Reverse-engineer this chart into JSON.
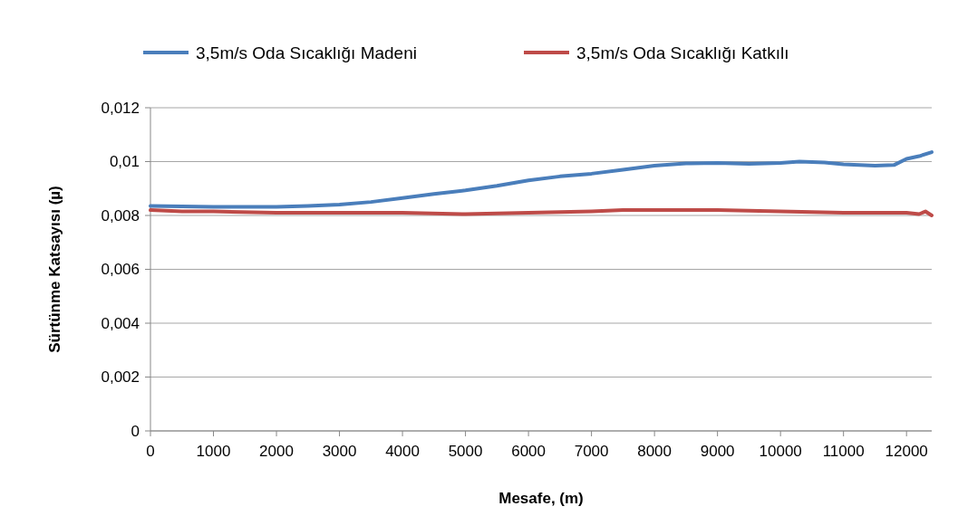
{
  "chart_data": {
    "type": "line",
    "xlabel": "Mesafe, (m)",
    "ylabel": "Sürtünme Katsayısı (µ)",
    "xlim": [
      0,
      12400
    ],
    "xticks": [
      0,
      1000,
      2000,
      3000,
      4000,
      5000,
      6000,
      7000,
      8000,
      9000,
      10000,
      11000,
      12000
    ],
    "ylim": [
      0,
      0.012
    ],
    "yticks": [
      {
        "value": 0,
        "label": "0"
      },
      {
        "value": 0.002,
        "label": "0,002"
      },
      {
        "value": 0.004,
        "label": "0,004"
      },
      {
        "value": 0.006,
        "label": "0,006"
      },
      {
        "value": 0.008,
        "label": "0,008"
      },
      {
        "value": 0.01,
        "label": "0,01"
      },
      {
        "value": 0.012,
        "label": "0,012"
      }
    ],
    "grid": "y",
    "legend": "top",
    "line_style": "solid",
    "marker": "none",
    "series": [
      {
        "name": "3,5m/s Oda Sıcaklığı Madeni",
        "color": "#4a7ebb",
        "x": [
          0,
          1000,
          2000,
          2500,
          3000,
          3500,
          4000,
          4500,
          5000,
          5500,
          6000,
          6500,
          7000,
          7500,
          8000,
          8500,
          9000,
          9500,
          10000,
          10300,
          10700,
          11000,
          11500,
          11800,
          12000,
          12200,
          12400
        ],
        "values": [
          0.00835,
          0.00832,
          0.00832,
          0.00835,
          0.0084,
          0.0085,
          0.00865,
          0.0088,
          0.00893,
          0.0091,
          0.0093,
          0.00945,
          0.00955,
          0.0097,
          0.00985,
          0.00993,
          0.00995,
          0.00992,
          0.00995,
          0.01,
          0.00997,
          0.0099,
          0.00985,
          0.00987,
          0.0101,
          0.0102,
          0.01035
        ]
      },
      {
        "name": "3,5m/s Oda Sıcaklığı Katkılı",
        "color": "#be4b48",
        "x": [
          0,
          500,
          1000,
          2000,
          3000,
          4000,
          5000,
          6000,
          7000,
          7500,
          8000,
          9000,
          10000,
          11000,
          12000,
          12200,
          12300,
          12400
        ],
        "values": [
          0.0082,
          0.00815,
          0.00815,
          0.0081,
          0.0081,
          0.0081,
          0.00805,
          0.0081,
          0.00815,
          0.0082,
          0.0082,
          0.0082,
          0.00815,
          0.0081,
          0.0081,
          0.00805,
          0.00815,
          0.008
        ]
      }
    ]
  }
}
